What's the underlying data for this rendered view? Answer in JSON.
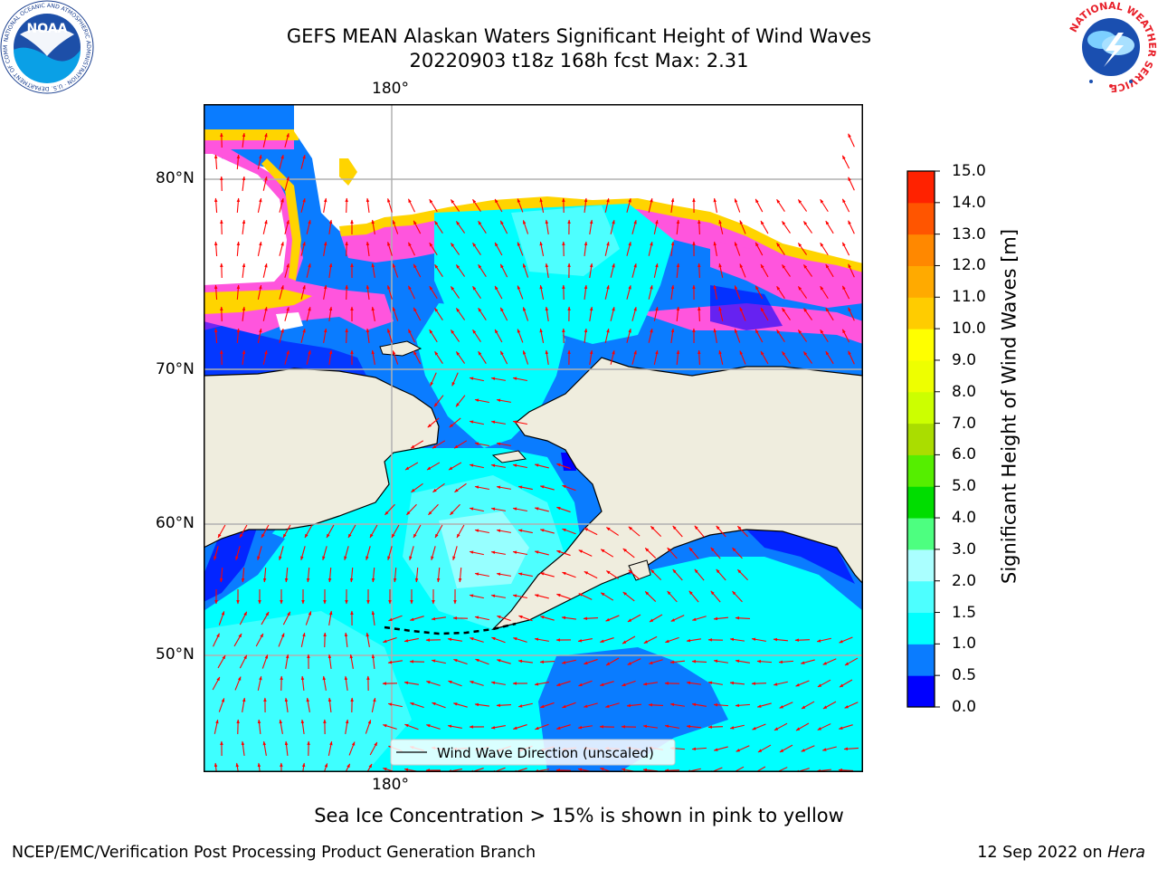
{
  "title": {
    "line1": "GEFS MEAN Alaskan Waters Significant Height of Wind Waves",
    "line2": "20220903 t18z 168h fcst   Max: 2.31"
  },
  "map": {
    "lon_label_top": "180°",
    "lon_label_bottom": "180°",
    "lat_labels": [
      "80°N",
      "70°N",
      "60°N",
      "50°N"
    ],
    "legend_text": "Wind Wave Direction (unscaled)",
    "colors": {
      "land": "#efedde",
      "grid": "#b0b0b0",
      "arrow": "#ff0000",
      "ice_edge": "#ffff44",
      "ice_pink": "#ff55dd",
      "ice_orange": "#ffb000"
    }
  },
  "colorbar": {
    "label": "Significant Height of Wind Waves [m]",
    "ticks": [
      "0.0",
      "0.5",
      "1.0",
      "1.5",
      "2.0",
      "3.0",
      "4.0",
      "5.0",
      "6.0",
      "7.0",
      "8.0",
      "9.0",
      "10.0",
      "11.0",
      "12.0",
      "13.0",
      "14.0",
      "15.0"
    ],
    "colors": [
      "#0000ff",
      "#0a7cff",
      "#00ffff",
      "#4dffff",
      "#aaffff",
      "#4dff80",
      "#00dd00",
      "#55ee00",
      "#aadd00",
      "#ccff00",
      "#eeff00",
      "#ffff00",
      "#ffcc00",
      "#ffaa00",
      "#ff8800",
      "#ff5500",
      "#ff2200",
      "#ff0000"
    ]
  },
  "note": "Sea Ice Concentration > 15% is shown in pink to yellow",
  "footer": {
    "left": "NCEP/EMC/Verification Post Processing Product Generation Branch",
    "right_prefix": "12 Sep 2022 on ",
    "right_host": "Hera"
  },
  "logos": {
    "noaa_text": "NOAA",
    "noaa_ring_text": "NATIONAL OCEANIC AND ATMOSPHERIC ADMINISTRATION · U.S. DEPARTMENT OF COMMERCE ·",
    "nws_ring_text": "NATIONAL WEATHER SERVICE"
  }
}
